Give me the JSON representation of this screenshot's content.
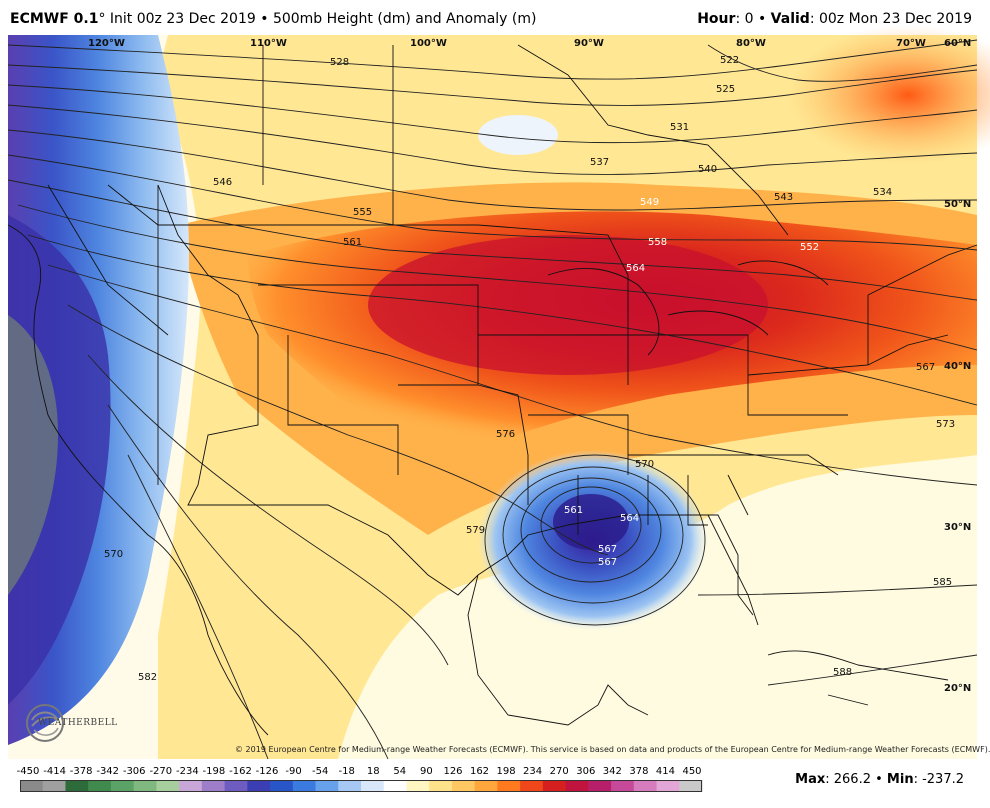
{
  "header": {
    "model": "ECMWF 0.1",
    "degree": "°",
    "init": " Init 00z 23 Dec 2019 • 500mb Height (dm) and Anomaly (m)",
    "hour_label": "Hour",
    "hour_value": ": 0 • ",
    "valid_label": "Valid",
    "valid_value": ": 00z Mon 23 Dec 2019"
  },
  "longitudes": [
    "120°W",
    "110°W",
    "100°W",
    "90°W",
    "80°W",
    "70°W"
  ],
  "latitudes": [
    "60°N",
    "50°N",
    "40°N",
    "30°N",
    "20°N"
  ],
  "contour_labels": [
    "528",
    "525",
    "522",
    "531",
    "537",
    "540",
    "534",
    "543",
    "546",
    "549",
    "552",
    "555",
    "558",
    "561",
    "564",
    "567",
    "567",
    "570",
    "570",
    "573",
    "576",
    "579",
    "582",
    "585",
    "588",
    "561",
    "564",
    "567"
  ],
  "colorbar": {
    "ticks": [
      "-450",
      "-414",
      "-378",
      "-342",
      "-306",
      "-270",
      "-234",
      "-198",
      "-162",
      "-126",
      "-90",
      "-54",
      "-18",
      "18",
      "54",
      "90",
      "126",
      "162",
      "198",
      "234",
      "270",
      "306",
      "342",
      "378",
      "414",
      "450"
    ],
    "colors": [
      "#8a8a8a",
      "#a0a0a0",
      "#2e6b3a",
      "#3f8a4c",
      "#5aa266",
      "#7fb97f",
      "#a6cf9d",
      "#c8a6d8",
      "#9f7ec9",
      "#6e5cc0",
      "#3c3fb3",
      "#2855c7",
      "#3b7be0",
      "#67a1ec",
      "#a6c9f3",
      "#d8e8fa",
      "#ffffff",
      "#fff6c2",
      "#ffe28a",
      "#ffc862",
      "#ffa63c",
      "#ff7a1e",
      "#f0471a",
      "#d62020",
      "#c0143e",
      "#b71f6a",
      "#c74a9a",
      "#d77bbf",
      "#e3a7d7",
      "#c9c9c9"
    ],
    "scale_colors": {
      "neutral": "#ffffff",
      "positive_low": "#fff3b0",
      "positive_mid": "#ff8a2a",
      "positive_high": "#cc1030",
      "negative_low": "#bcd6f5",
      "negative_mid": "#3a6fd8",
      "negative_high": "#3a2a9c"
    }
  },
  "stats": {
    "max_label": "Max",
    "max_value": ": 266.2 • ",
    "min_label": "Min",
    "min_value": ": -237.2"
  },
  "copyright": "© 2019 European Centre for Medium-range Weather Forecasts (ECMWF). This service is based on data and products of the European Centre for Medium-range Weather Forecasts (ECMWF).",
  "logo": {
    "text": "WEATHERBELL",
    "icon": "weatherbell-swirl-icon"
  }
}
